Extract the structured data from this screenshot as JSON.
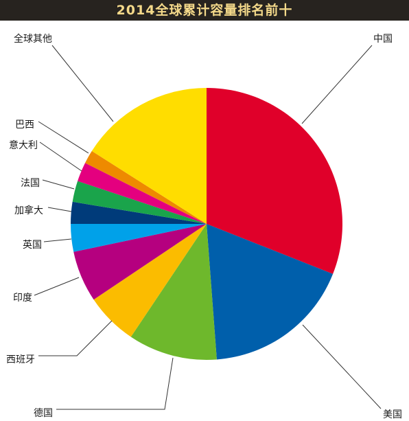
{
  "title": "2014全球累计容量排名前十",
  "chart_data": {
    "type": "pie",
    "title": "2014全球累计容量排名前十",
    "slices": [
      {
        "label": "中国",
        "value": 31.0,
        "color": "#e0002a"
      },
      {
        "label": "美国",
        "value": 17.8,
        "color": "#005fab"
      },
      {
        "label": "德国",
        "value": 10.6,
        "color": "#6eb82c"
      },
      {
        "label": "西班牙",
        "value": 6.2,
        "color": "#fbbc00"
      },
      {
        "label": "印度",
        "value": 6.1,
        "color": "#b5007f"
      },
      {
        "label": "英国",
        "value": 3.3,
        "color": "#00a1e9"
      },
      {
        "label": "加拿大",
        "value": 2.6,
        "color": "#003b7a"
      },
      {
        "label": "法国",
        "value": 2.5,
        "color": "#1aa44b"
      },
      {
        "label": "意大利",
        "value": 2.3,
        "color": "#e4007f"
      },
      {
        "label": "巴西",
        "value": 1.6,
        "color": "#ee8a00"
      },
      {
        "label": "全球其他",
        "value": 16.0,
        "color": "#ffdd00"
      }
    ]
  }
}
